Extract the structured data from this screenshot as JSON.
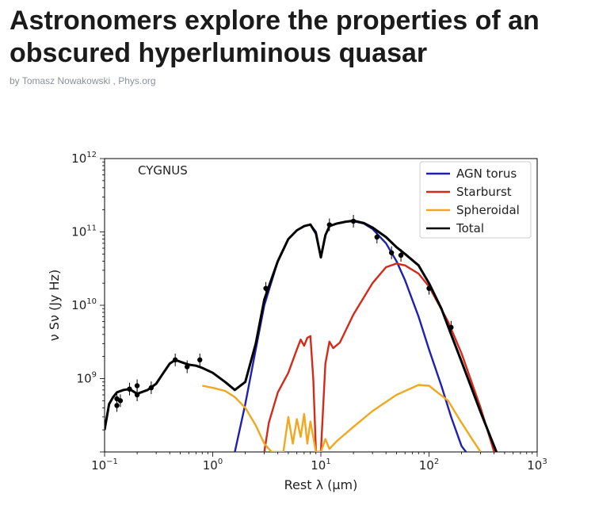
{
  "article": {
    "title": "Astronomers explore the properties of an obscured hyperluminous quasar",
    "byline_prefix": "by",
    "author": "Tomasz Nowakowski",
    "separator": " , ",
    "source": "Phys.org"
  },
  "chart_data": {
    "type": "line",
    "title": "CYGNUS",
    "xlabel": "Rest λ (μm)",
    "ylabel": "ν Sν (Jy Hz)",
    "xscale": "log",
    "yscale": "log",
    "xlim": [
      0.1,
      1000
    ],
    "ylim": [
      100000000,
      1000000000000
    ],
    "x_ticks": [
      {
        "base": "10",
        "exp": "−1",
        "value": 0.1
      },
      {
        "base": "10",
        "exp": "0",
        "value": 1
      },
      {
        "base": "10",
        "exp": "1",
        "value": 10
      },
      {
        "base": "10",
        "exp": "2",
        "value": 100
      },
      {
        "base": "10",
        "exp": "3",
        "value": 1000
      }
    ],
    "y_ticks": [
      {
        "base": "10",
        "exp": "9",
        "value": 1000000000
      },
      {
        "base": "10",
        "exp": "10",
        "value": 10000000000
      },
      {
        "base": "10",
        "exp": "11",
        "value": 100000000000
      },
      {
        "base": "10",
        "exp": "12",
        "value": 1000000000000
      }
    ],
    "legend_position": "top-right",
    "grid": false,
    "series": [
      {
        "name": "AGN torus",
        "color": "#1f1fb0",
        "x": [
          1.6,
          2.0,
          2.5,
          3.0,
          4.0,
          5.0,
          6.0,
          7.0,
          8.0,
          9.0,
          10.0,
          11.0,
          12.0,
          14.0,
          17.0,
          20.0,
          25.0,
          30.0,
          40.0,
          50.0,
          60.0,
          80.0,
          100.0,
          130.0,
          160.0,
          200.0,
          220.0
        ],
        "y": [
          100000000,
          450000000,
          2500000000,
          10000000000,
          40000000000,
          80000000000,
          105000000000,
          120000000000,
          126000000000,
          100000000000,
          45000000000,
          90000000000,
          120000000000,
          130000000000,
          138000000000,
          140000000000,
          130000000000,
          110000000000,
          70000000000,
          40000000000,
          22000000000,
          7000000000,
          2500000000,
          800000000,
          300000000,
          120000000,
          100000000
        ]
      },
      {
        "name": "Starburst",
        "color": "#d42a1a",
        "x": [
          3.0,
          3.3,
          4.0,
          5.0,
          6.0,
          6.5,
          7.0,
          7.5,
          8.0,
          8.5,
          9.0,
          10.0,
          11.0,
          12.0,
          13.0,
          15.0,
          20.0,
          30.0,
          40.0,
          50.0,
          60.0,
          80.0,
          100.0,
          150.0,
          200.0,
          300.0,
          400.0
        ],
        "y": [
          100000000,
          250000000,
          650000000,
          1200000000,
          2500000000,
          3400000000,
          2800000000,
          3600000000,
          3800000000,
          1000000000,
          100000000,
          100000000,
          1600000000,
          3200000000,
          2600000000,
          3100000000,
          7500000000,
          20000000000,
          33000000000,
          37000000000,
          35000000000,
          27000000000,
          18000000000,
          6000000000,
          2200000000,
          400000000,
          100000000
        ]
      },
      {
        "name": "Spheroidal",
        "color": "#f0a81e",
        "x": [
          0.8,
          1.0,
          1.3,
          1.6,
          2.0,
          2.5,
          3.0,
          3.5,
          4.5,
          5.0,
          5.5,
          6.0,
          6.5,
          7.0,
          7.5,
          8.0,
          9.0,
          10.0,
          11.0,
          12.0,
          14.0,
          20.0,
          30.0,
          50.0,
          80.0,
          100.0,
          150.0,
          200.0,
          250.0,
          300.0
        ],
        "y": [
          800000000,
          750000000,
          680000000,
          560000000,
          400000000,
          230000000,
          130000000,
          100000000,
          100000000,
          300000000,
          130000000,
          280000000,
          160000000,
          330000000,
          130000000,
          260000000,
          100000000,
          100000000,
          150000000,
          110000000,
          140000000,
          220000000,
          360000000,
          600000000,
          820000000,
          800000000,
          500000000,
          250000000,
          150000000,
          100000000
        ]
      },
      {
        "name": "Total",
        "color": "#000000",
        "x": [
          0.1,
          0.11,
          0.12,
          0.13,
          0.15,
          0.17,
          0.2,
          0.25,
          0.3,
          0.35,
          0.4,
          0.45,
          0.5,
          0.6,
          0.7,
          0.8,
          1.0,
          1.3,
          1.6,
          2.0,
          2.5,
          3.0,
          4.0,
          5.0,
          6.0,
          7.0,
          8.0,
          9.0,
          10.0,
          11.0,
          12.0,
          14.0,
          17.0,
          20.0,
          25.0,
          30.0,
          40.0,
          50.0,
          60.0,
          80.0,
          100.0,
          130.0,
          160.0,
          200.0,
          300.0,
          420.0
        ],
        "y": [
          200000000,
          450000000,
          560000000,
          650000000,
          700000000,
          720000000,
          620000000,
          700000000,
          850000000,
          1200000000,
          1600000000,
          1800000000,
          1700000000,
          1550000000,
          1500000000,
          1400000000,
          1200000000,
          900000000,
          700000000,
          900000000,
          3000000000,
          12000000000,
          40000000000,
          80000000000,
          105000000000,
          120000000000,
          126000000000,
          95000000000,
          45000000000,
          90000000000,
          120000000000,
          130000000000,
          138000000000,
          142000000000,
          132000000000,
          115000000000,
          85000000000,
          62000000000,
          50000000000,
          35000000000,
          20000000000,
          9000000000,
          4000000000,
          1700000000,
          350000000,
          100000000
        ]
      }
    ],
    "observations": {
      "color": "#000000",
      "x": [
        0.13,
        0.13,
        0.14,
        0.17,
        0.2,
        0.2,
        0.27,
        0.45,
        0.58,
        0.76,
        3.1,
        12.0,
        20.0,
        33.0,
        45.0,
        55.0,
        100.0,
        160.0
      ],
      "y": [
        530000000,
        430000000,
        500000000,
        720000000,
        800000000,
        600000000,
        750000000,
        1800000000,
        1450000000,
        1800000000,
        17000000000,
        125000000000,
        140000000000,
        85000000000,
        52000000000,
        48000000000,
        17000000000,
        5000000000
      ]
    }
  }
}
